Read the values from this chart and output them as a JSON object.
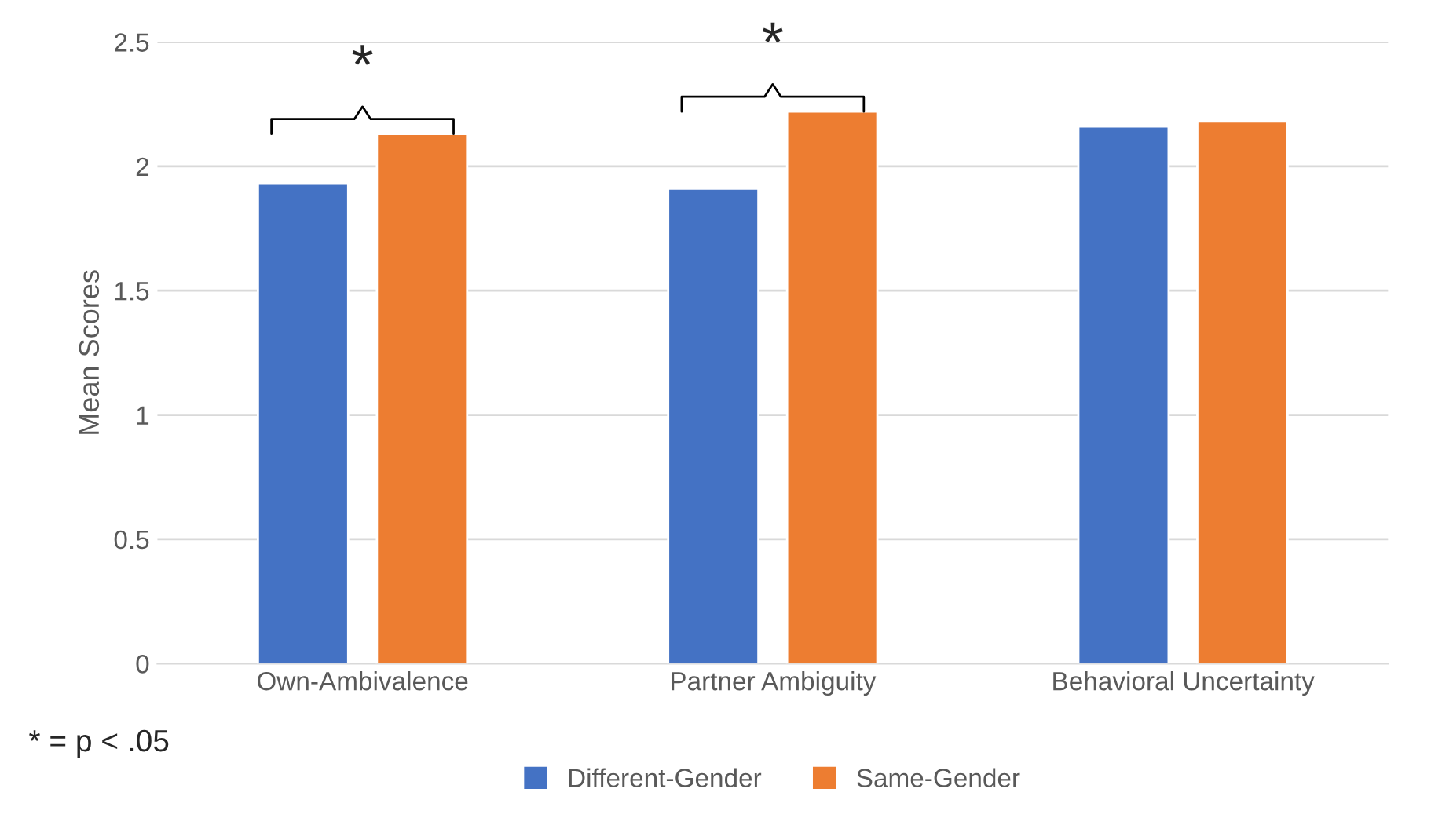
{
  "chart_data": {
    "type": "bar",
    "ylabel": "Mean Scores",
    "categories": [
      "Own-Ambivalence",
      "Partner Ambiguity",
      "Behavioral Uncertainty"
    ],
    "series": [
      {
        "name": "Different-Gender",
        "color": "#4472c4",
        "values": [
          1.93,
          1.91,
          2.16
        ]
      },
      {
        "name": "Same-Gender",
        "color": "#ed7d31",
        "values": [
          2.13,
          2.22,
          2.18
        ]
      }
    ],
    "ylim": [
      0,
      2.5
    ],
    "yticks": [
      0,
      0.5,
      1,
      1.5,
      2,
      2.5
    ],
    "grid": "y",
    "legend": "bottom",
    "annotations": [
      "*",
      "*",
      "* = p < .05"
    ]
  }
}
